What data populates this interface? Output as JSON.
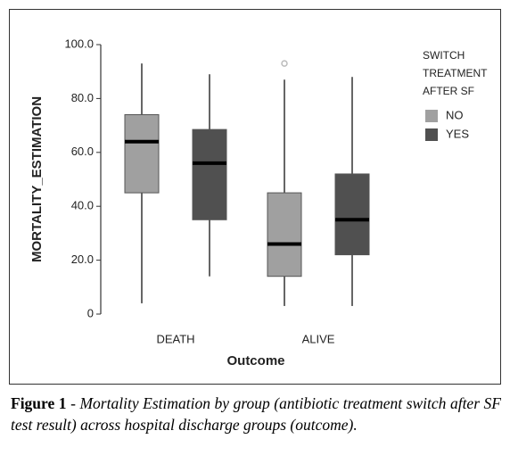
{
  "chart_data": {
    "type": "box",
    "ylabel": "MORTALITY_ESTIMATION",
    "xlabel": "Outcome",
    "categories": [
      "DEATH",
      "ALIVE"
    ],
    "ylim": [
      0,
      100
    ],
    "yticks": [
      0,
      {
        "value": 20,
        "label": "20.0"
      },
      {
        "value": 40,
        "label": "40.0"
      },
      {
        "value": 60,
        "label": "60.0"
      },
      {
        "value": 80,
        "label": "80.0"
      },
      {
        "value": 100,
        "label": "100.0"
      }
    ],
    "legend_title": [
      "SWITCH",
      "TREATMENT",
      "AFTER SF"
    ],
    "series": [
      {
        "name": "NO",
        "color": "#a0a0a0",
        "values": [
          {
            "min": 4,
            "q1": 45,
            "median": 64,
            "q3": 74,
            "max": 93
          },
          {
            "min": 3,
            "q1": 14,
            "median": 26,
            "q3": 45,
            "max": 87
          }
        ],
        "outliers": [
          [],
          [
            93
          ]
        ]
      },
      {
        "name": "YES",
        "color": "#505050",
        "values": [
          {
            "min": 14,
            "q1": 35,
            "median": 56,
            "q3": 68.5,
            "max": 89
          },
          {
            "min": 3,
            "q1": 22,
            "median": 35,
            "q3": 52,
            "max": 88
          }
        ],
        "outliers": [
          [],
          []
        ]
      }
    ]
  },
  "caption": {
    "label": "Figure 1",
    "text": "- Mortality Estimation by group (antibiotic treatment switch after SF test result) across hospital discharge groups (outcome)."
  }
}
